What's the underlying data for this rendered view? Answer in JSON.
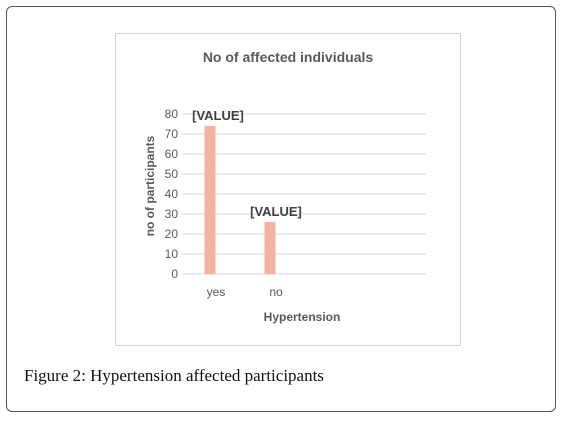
{
  "figure": {
    "caption_label": "Figure 2:",
    "caption_text": " Hypertension affected participants"
  },
  "colors": {
    "bar": "#F4B3A1",
    "grid": "#D9D9D9",
    "text": "#595959",
    "title": "#595959"
  },
  "chart_data": {
    "type": "bar",
    "title": "No of affected individuals",
    "xlabel": "Hypertension",
    "ylabel": "no of participants",
    "categories": [
      "yes",
      "no"
    ],
    "values": [
      74,
      26
    ],
    "data_labels": [
      "[VALUE]",
      "[VALUE]"
    ],
    "ylim": [
      0,
      80
    ],
    "yticks": [
      0,
      10,
      20,
      30,
      40,
      50,
      60,
      70,
      80
    ],
    "grid": true,
    "legend": "none"
  }
}
